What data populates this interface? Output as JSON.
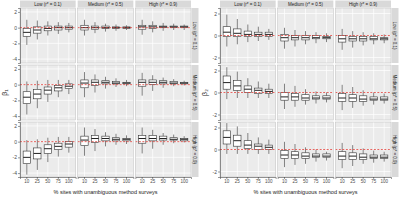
{
  "chart_data": [
    {
      "type": "box",
      "x_label": "% sites with unambiguous method surveys",
      "y_label": "β₁",
      "categories": [
        10,
        25,
        50,
        75,
        100
      ],
      "columns": [
        "Low (r* = 0.1)",
        "Medium (r* = 0.5)",
        "High (r* = 0.9)"
      ],
      "rows": [
        "Low (p* = 0.1)",
        "Medium (p* = 0.5)",
        "High (p* = 0.9)"
      ],
      "ylim": [
        -4.5,
        2.5
      ],
      "yticks": [
        -4,
        -2,
        0,
        2
      ],
      "grid": true,
      "reference": 0,
      "panels": [
        [
          {
            "boxes": [
              [
                -2.2,
                -1.1,
                -0.6,
                -0.1,
                1.0
              ],
              [
                -1.5,
                -0.7,
                -0.3,
                0.1,
                0.9
              ],
              [
                -1.0,
                -0.4,
                -0.1,
                0.2,
                0.8
              ],
              [
                -0.8,
                -0.3,
                0.0,
                0.2,
                0.7
              ],
              [
                -0.6,
                -0.2,
                0.0,
                0.2,
                0.6
              ]
            ]
          },
          {
            "boxes": [
              [
                -1.0,
                -0.3,
                0.0,
                0.3,
                1.0
              ],
              [
                -0.7,
                -0.2,
                0.0,
                0.2,
                0.7
              ],
              [
                -0.5,
                -0.1,
                0.0,
                0.2,
                0.5
              ],
              [
                -0.4,
                -0.1,
                0.0,
                0.1,
                0.4
              ],
              [
                -0.3,
                -0.1,
                0.0,
                0.1,
                0.3
              ]
            ]
          },
          {
            "boxes": [
              [
                -0.9,
                -0.2,
                0.1,
                0.3,
                1.0
              ],
              [
                -0.6,
                -0.1,
                0.1,
                0.3,
                0.8
              ],
              [
                -0.4,
                0.0,
                0.1,
                0.2,
                0.6
              ],
              [
                -0.3,
                0.0,
                0.1,
                0.2,
                0.5
              ],
              [
                -0.3,
                0.0,
                0.1,
                0.2,
                0.4
              ]
            ]
          }
        ],
        [
          {
            "boxes": [
              [
                -3.8,
                -2.4,
                -1.6,
                -0.9,
                0.4
              ],
              [
                -3.0,
                -1.8,
                -1.2,
                -0.6,
                0.5
              ],
              [
                -2.2,
                -1.2,
                -0.7,
                -0.3,
                0.6
              ],
              [
                -1.6,
                -0.8,
                -0.4,
                -0.1,
                0.6
              ],
              [
                -1.2,
                -0.5,
                -0.2,
                0.1,
                0.6
              ]
            ]
          },
          {
            "boxes": [
              [
                -1.6,
                -0.4,
                0.2,
                0.6,
                1.6
              ],
              [
                -1.0,
                -0.1,
                0.3,
                0.6,
                1.3
              ],
              [
                -0.5,
                0.1,
                0.3,
                0.5,
                1.0
              ],
              [
                -0.3,
                0.1,
                0.2,
                0.4,
                0.8
              ],
              [
                -0.2,
                0.1,
                0.2,
                0.3,
                0.6
              ]
            ]
          },
          {
            "boxes": [
              [
                -1.4,
                -0.2,
                0.3,
                0.6,
                1.5
              ],
              [
                -0.8,
                0.0,
                0.3,
                0.6,
                1.2
              ],
              [
                -0.4,
                0.1,
                0.3,
                0.5,
                0.9
              ],
              [
                -0.2,
                0.1,
                0.2,
                0.4,
                0.7
              ],
              [
                -0.1,
                0.1,
                0.2,
                0.3,
                0.5
              ]
            ]
          }
        ],
        [
          {
            "boxes": [
              [
                -4.2,
                -2.8,
                -2.0,
                -1.2,
                0.2
              ],
              [
                -3.6,
                -2.2,
                -1.5,
                -0.8,
                0.3
              ],
              [
                -2.6,
                -1.5,
                -0.9,
                -0.4,
                0.5
              ],
              [
                -1.9,
                -1.0,
                -0.6,
                -0.2,
                0.6
              ],
              [
                -1.4,
                -0.7,
                -0.3,
                0.0,
                0.6
              ]
            ]
          },
          {
            "boxes": [
              [
                -1.8,
                -0.5,
                0.2,
                0.7,
                1.8
              ],
              [
                -1.2,
                -0.1,
                0.4,
                0.8,
                1.6
              ],
              [
                -0.6,
                0.1,
                0.4,
                0.7,
                1.2
              ],
              [
                -0.4,
                0.1,
                0.3,
                0.5,
                1.0
              ],
              [
                -0.3,
                0.1,
                0.3,
                0.4,
                0.8
              ]
            ]
          },
          {
            "boxes": [
              [
                -1.5,
                -0.2,
                0.4,
                0.8,
                1.8
              ],
              [
                -0.9,
                0.1,
                0.4,
                0.8,
                1.5
              ],
              [
                -0.4,
                0.2,
                0.4,
                0.7,
                1.1
              ],
              [
                -0.2,
                0.2,
                0.3,
                0.5,
                0.9
              ],
              [
                -0.1,
                0.1,
                0.3,
                0.4,
                0.7
              ]
            ]
          }
        ]
      ]
    },
    {
      "type": "box",
      "x_label": "% sites with unambiguous method surveys",
      "y_label": "β₂",
      "categories": [
        10,
        25,
        50,
        75,
        100
      ],
      "columns": [
        "Low (r* = 0.1)",
        "Medium (r* = 0.5)",
        "High (r* = 0.9)"
      ],
      "rows": [
        "Low (p* = 0.1)",
        "Medium (p* = 0.5)",
        "High (p* = 0.9)"
      ],
      "ylim": [
        -2.5,
        2.5
      ],
      "yticks": [
        -2,
        0,
        2
      ],
      "grid": true,
      "reference": 0,
      "panels": [
        [
          {
            "boxes": [
              [
                -1.0,
                -0.1,
                0.3,
                0.8,
                1.9
              ],
              [
                -0.8,
                -0.1,
                0.2,
                0.6,
                1.5
              ],
              [
                -0.6,
                -0.1,
                0.1,
                0.4,
                1.0
              ],
              [
                -0.5,
                -0.1,
                0.1,
                0.3,
                0.8
              ],
              [
                -0.4,
                -0.1,
                0.1,
                0.3,
                0.6
              ]
            ]
          },
          {
            "boxes": [
              [
                -1.2,
                -0.5,
                -0.2,
                0.1,
                0.7
              ],
              [
                -1.0,
                -0.4,
                -0.2,
                0.0,
                0.5
              ],
              [
                -0.8,
                -0.4,
                -0.2,
                0.0,
                0.4
              ],
              [
                -0.7,
                -0.3,
                -0.2,
                0.0,
                0.3
              ],
              [
                -0.6,
                -0.3,
                -0.2,
                -0.1,
                0.2
              ]
            ]
          },
          {
            "boxes": [
              [
                -1.3,
                -0.6,
                -0.3,
                0.0,
                0.6
              ],
              [
                -1.1,
                -0.5,
                -0.3,
                -0.1,
                0.4
              ],
              [
                -0.9,
                -0.5,
                -0.3,
                -0.1,
                0.3
              ],
              [
                -0.8,
                -0.4,
                -0.3,
                -0.1,
                0.2
              ],
              [
                -0.7,
                -0.4,
                -0.3,
                -0.2,
                0.1
              ]
            ]
          }
        ],
        [
          {
            "boxes": [
              [
                -0.6,
                0.3,
                0.9,
                1.5,
                2.3
              ],
              [
                -0.5,
                0.2,
                0.6,
                1.1,
                1.9
              ],
              [
                -0.5,
                0.0,
                0.3,
                0.6,
                1.3
              ],
              [
                -0.5,
                -0.1,
                0.2,
                0.4,
                1.0
              ],
              [
                -0.5,
                -0.1,
                0.1,
                0.3,
                0.8
              ]
            ]
          },
          {
            "boxes": [
              [
                -1.5,
                -0.7,
                -0.4,
                0.0,
                0.8
              ],
              [
                -1.3,
                -0.7,
                -0.4,
                -0.1,
                0.6
              ],
              [
                -1.1,
                -0.7,
                -0.5,
                -0.2,
                0.3
              ],
              [
                -1.0,
                -0.6,
                -0.5,
                -0.3,
                0.1
              ],
              [
                -0.9,
                -0.6,
                -0.5,
                -0.3,
                0.0
              ]
            ]
          },
          {
            "boxes": [
              [
                -1.6,
                -0.8,
                -0.5,
                -0.1,
                0.7
              ],
              [
                -1.4,
                -0.8,
                -0.5,
                -0.2,
                0.5
              ],
              [
                -1.2,
                -0.8,
                -0.6,
                -0.3,
                0.2
              ],
              [
                -1.1,
                -0.7,
                -0.6,
                -0.4,
                0.0
              ],
              [
                -1.0,
                -0.7,
                -0.6,
                -0.4,
                -0.1
              ]
            ]
          }
        ],
        [
          {
            "boxes": [
              [
                -0.4,
                0.5,
                1.1,
                1.7,
                2.4
              ],
              [
                -0.4,
                0.3,
                0.8,
                1.3,
                2.1
              ],
              [
                -0.4,
                0.1,
                0.4,
                0.8,
                1.5
              ],
              [
                -0.4,
                0.0,
                0.3,
                0.5,
                1.1
              ],
              [
                -0.4,
                0.0,
                0.2,
                0.4,
                0.9
              ]
            ]
          },
          {
            "boxes": [
              [
                -1.6,
                -0.8,
                -0.5,
                -0.1,
                0.7
              ],
              [
                -1.4,
                -0.8,
                -0.5,
                -0.2,
                0.5
              ],
              [
                -1.3,
                -0.8,
                -0.6,
                -0.3,
                0.2
              ],
              [
                -1.1,
                -0.7,
                -0.6,
                -0.4,
                0.0
              ],
              [
                -1.0,
                -0.7,
                -0.6,
                -0.4,
                -0.2
              ]
            ]
          },
          {
            "boxes": [
              [
                -1.7,
                -0.9,
                -0.6,
                -0.2,
                0.6
              ],
              [
                -1.5,
                -0.9,
                -0.6,
                -0.3,
                0.4
              ],
              [
                -1.3,
                -0.9,
                -0.7,
                -0.4,
                0.1
              ],
              [
                -1.2,
                -0.8,
                -0.7,
                -0.5,
                -0.1
              ],
              [
                -1.1,
                -0.8,
                -0.7,
                -0.5,
                -0.2
              ]
            ]
          }
        ]
      ]
    }
  ]
}
